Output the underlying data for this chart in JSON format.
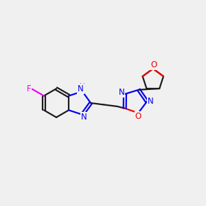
{
  "bg_color": "#f0f0f0",
  "bond_color": "#1a1a1a",
  "N_color": "#0000ee",
  "O_color": "#ee0000",
  "F_color": "#ee00ee",
  "H_color": "#008080",
  "line_width": 1.6,
  "figsize": [
    3.0,
    3.0
  ],
  "dpi": 100,
  "xlim": [
    0,
    12
  ],
  "ylim": [
    1,
    9
  ]
}
